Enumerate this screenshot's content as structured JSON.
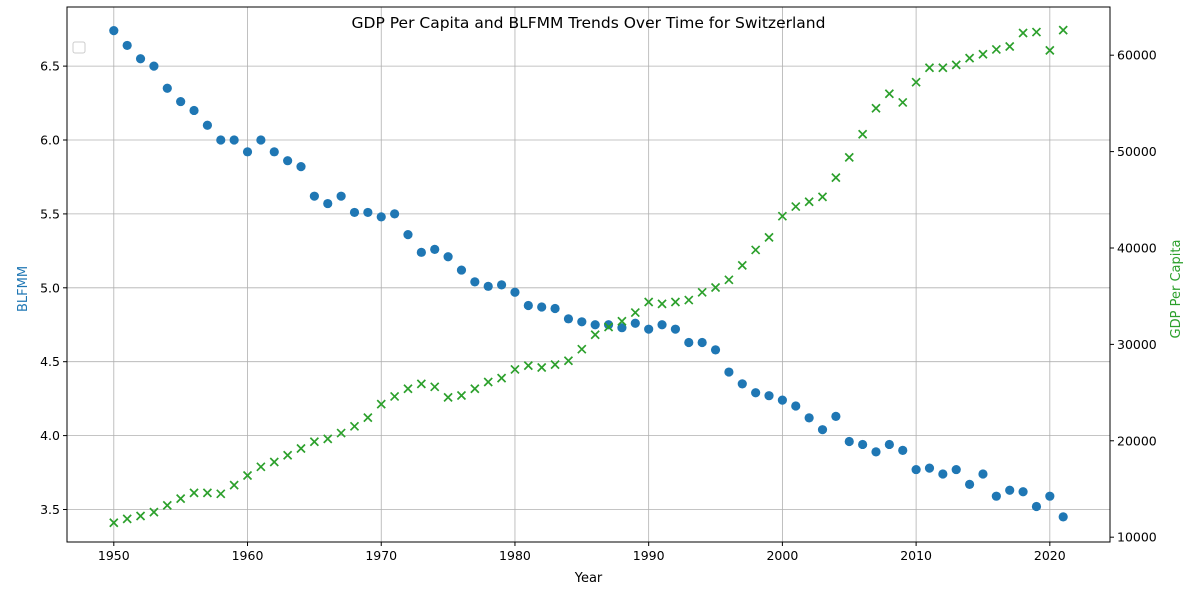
{
  "chart_data": {
    "type": "scatter",
    "title": "GDP Per Capita and BLFMM Trends Over Time for Switzerland",
    "xlabel": "Year",
    "ylabel_left": "BLFMM",
    "ylabel_right": "GDP Per Capita",
    "xlim": [
      1946.5,
      2024.5
    ],
    "ylim_left": [
      3.28,
      6.9
    ],
    "ylim_right": [
      9500,
      65000
    ],
    "x_ticks": [
      1950,
      1960,
      1970,
      1980,
      1990,
      2000,
      2010,
      2020
    ],
    "y_ticks_left": [
      3.5,
      4.0,
      4.5,
      5.0,
      5.5,
      6.0,
      6.5
    ],
    "y_ticks_right": [
      10000,
      20000,
      30000,
      40000,
      50000,
      60000
    ],
    "grid": true,
    "legend": "top-left, empty",
    "colors": {
      "blfmm": "#1f77b4",
      "gdp": "#2ca02c"
    },
    "x": [
      1950,
      1951,
      1952,
      1953,
      1954,
      1955,
      1956,
      1957,
      1958,
      1959,
      1960,
      1961,
      1962,
      1963,
      1964,
      1965,
      1966,
      1967,
      1968,
      1969,
      1970,
      1971,
      1972,
      1973,
      1974,
      1975,
      1976,
      1977,
      1978,
      1979,
      1980,
      1981,
      1982,
      1983,
      1984,
      1985,
      1986,
      1987,
      1988,
      1989,
      1990,
      1991,
      1992,
      1993,
      1994,
      1995,
      1996,
      1997,
      1998,
      1999,
      2000,
      2001,
      2002,
      2003,
      2004,
      2005,
      2006,
      2007,
      2008,
      2009,
      2010,
      2011,
      2012,
      2013,
      2014,
      2015,
      2016,
      2017,
      2018,
      2019,
      2020,
      2021
    ],
    "series": [
      {
        "key": "blfmm",
        "axis": "left",
        "marker": "circle",
        "values": [
          6.74,
          6.64,
          6.55,
          6.5,
          6.35,
          6.26,
          6.2,
          6.1,
          6.0,
          6.0,
          5.92,
          6.0,
          5.92,
          5.86,
          5.82,
          5.62,
          5.57,
          5.62,
          5.51,
          5.51,
          5.48,
          5.5,
          5.36,
          5.24,
          5.26,
          5.21,
          5.12,
          5.04,
          5.01,
          5.02,
          4.97,
          4.88,
          4.87,
          4.86,
          4.79,
          4.77,
          4.75,
          4.75,
          4.73,
          4.76,
          4.72,
          4.75,
          4.72,
          4.63,
          4.63,
          4.58,
          4.43,
          4.35,
          4.29,
          4.27,
          4.24,
          4.2,
          4.12,
          4.04,
          4.13,
          3.96,
          3.94,
          3.89,
          3.94,
          3.9,
          3.77,
          3.78,
          3.74,
          3.77,
          3.67,
          3.74,
          3.59,
          3.63,
          3.62,
          3.52,
          3.59,
          3.45
        ]
      },
      {
        "key": "gdp",
        "axis": "right",
        "marker": "x",
        "values": [
          11500,
          11900,
          12200,
          12600,
          13300,
          14000,
          14600,
          14600,
          14500,
          15400,
          16400,
          17300,
          17800,
          18500,
          19200,
          19900,
          20200,
          20800,
          21500,
          22400,
          23800,
          24600,
          25400,
          25900,
          25600,
          24500,
          24700,
          25400,
          26100,
          26500,
          27400,
          27800,
          27600,
          27900,
          28300,
          29500,
          31000,
          31800,
          32400,
          33300,
          34400,
          34200,
          34400,
          34600,
          35400,
          35900,
          36700,
          38200,
          39800,
          41100,
          43300,
          44300,
          44800,
          45300,
          47300,
          49400,
          51800,
          54500,
          56000,
          55100,
          57200,
          58700,
          58700,
          59000,
          59700,
          60100,
          60600,
          60900,
          62300,
          62400,
          60500,
          62600
        ]
      }
    ]
  }
}
